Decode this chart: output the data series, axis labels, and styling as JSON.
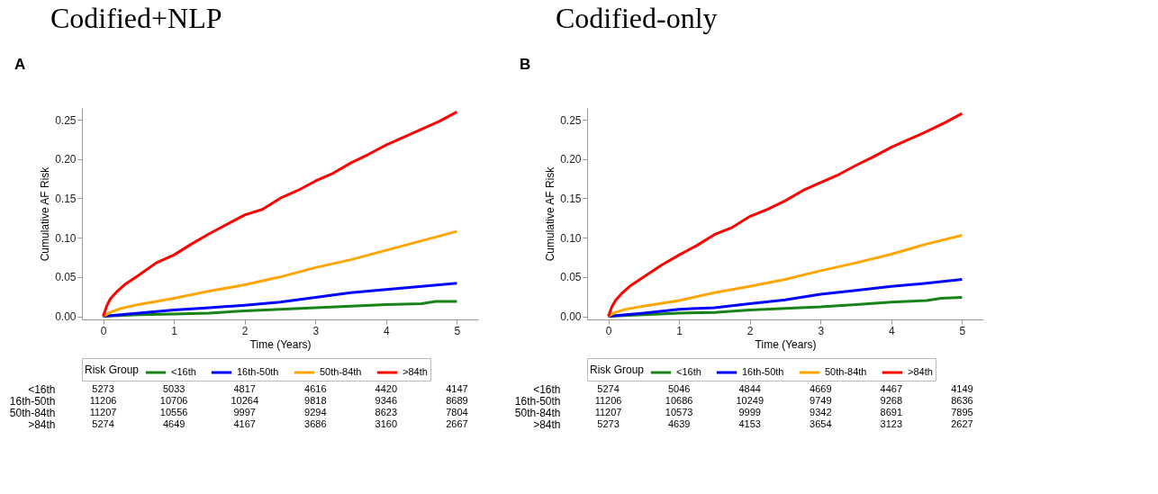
{
  "chart_data": [
    {
      "type": "line",
      "title": "Codified+NLP",
      "xlabel": "Time (Years)",
      "ylabel": "Cumulative AF Risk",
      "legend_title": "Risk Group",
      "legend": "bottom",
      "grid": false,
      "marker": "none",
      "line_style": "solid",
      "xlim": [
        -0.3,
        5.3
      ],
      "ylim": [
        -0.004,
        0.265
      ],
      "xticks": [
        0,
        1,
        2,
        3,
        4,
        5
      ],
      "yticks": [
        {
          "value": 0,
          "label": "0.00"
        },
        {
          "value": 0.05,
          "label": "0.05"
        },
        {
          "value": 0.1,
          "label": "0.10"
        },
        {
          "value": 0.15,
          "label": "0.15"
        },
        {
          "value": 0.2,
          "label": "0.20"
        },
        {
          "value": 0.25,
          "label": "0.25"
        }
      ],
      "series": [
        {
          "name": "<16th",
          "color": "#178217",
          "x": [
            0,
            0.5,
            1,
            1.5,
            2,
            2.5,
            3,
            3.5,
            4,
            4.5,
            4.7,
            5
          ],
          "values": [
            0,
            0.002,
            0.003,
            0.004,
            0.007,
            0.009,
            0.011,
            0.013,
            0.015,
            0.016,
            0.019,
            0.019
          ]
        },
        {
          "name": "16th-50th",
          "color": "#0000ff",
          "x": [
            0,
            0.5,
            1,
            1.5,
            2,
            2.5,
            3,
            3.5,
            4,
            4.5,
            5
          ],
          "values": [
            0,
            0.004,
            0.008,
            0.011,
            0.014,
            0.018,
            0.024,
            0.03,
            0.034,
            0.038,
            0.042
          ]
        },
        {
          "name": "50th-84th",
          "color": "#ffa500",
          "x": [
            0,
            0.1,
            0.25,
            0.5,
            1,
            1.5,
            2,
            2.5,
            3,
            3.5,
            4,
            4.5,
            5
          ],
          "values": [
            0,
            0.005,
            0.01,
            0.015,
            0.023,
            0.032,
            0.04,
            0.05,
            0.062,
            0.072,
            0.084,
            0.096,
            0.108
          ]
        },
        {
          "name": ">84th",
          "color": "#ff0000",
          "x": [
            0,
            0.05,
            0.1,
            0.2,
            0.3,
            0.5,
            0.75,
            1,
            1.25,
            1.5,
            1.75,
            2,
            2.25,
            2.5,
            2.75,
            3,
            3.25,
            3.5,
            3.75,
            4,
            4.25,
            4.5,
            4.75,
            5
          ],
          "values": [
            0,
            0.013,
            0.022,
            0.032,
            0.04,
            0.052,
            0.068,
            0.078,
            0.092,
            0.105,
            0.117,
            0.129,
            0.136,
            0.15,
            0.16,
            0.172,
            0.182,
            0.195,
            0.206,
            0.218,
            0.228,
            0.238,
            0.248,
            0.26
          ]
        }
      ],
      "annotations": [
        "A",
        "<16th",
        "5273",
        "5033",
        "4817",
        "4616",
        "4420",
        "4147",
        "16th-50th",
        "11206",
        "10706",
        "10264",
        "9818",
        "9346",
        "8689",
        "50th-84th",
        "11207",
        "10556",
        "9997",
        "9294",
        "8623",
        "7804",
        ">84th",
        "5274",
        "4649",
        "4167",
        "3686",
        "3160",
        "2667"
      ]
    },
    {
      "type": "line",
      "title": "Codified-only",
      "xlabel": "Time (Years)",
      "ylabel": "Cumulative AF Risk",
      "legend_title": "Risk Group",
      "legend": "bottom",
      "grid": false,
      "marker": "none",
      "line_style": "solid",
      "xlim": [
        -0.3,
        5.3
      ],
      "ylim": [
        -0.004,
        0.265
      ],
      "xticks": [
        0,
        1,
        2,
        3,
        4,
        5
      ],
      "yticks": [
        {
          "value": 0,
          "label": "0.00"
        },
        {
          "value": 0.05,
          "label": "0.05"
        },
        {
          "value": 0.1,
          "label": "0.10"
        },
        {
          "value": 0.15,
          "label": "0.15"
        },
        {
          "value": 0.2,
          "label": "0.20"
        },
        {
          "value": 0.25,
          "label": "0.25"
        }
      ],
      "series": [
        {
          "name": "<16th",
          "color": "#178217",
          "x": [
            0,
            0.5,
            1,
            1.5,
            2,
            2.5,
            3,
            3.5,
            4,
            4.5,
            4.7,
            5
          ],
          "values": [
            0,
            0.002,
            0.004,
            0.005,
            0.008,
            0.01,
            0.012,
            0.015,
            0.018,
            0.02,
            0.023,
            0.024
          ]
        },
        {
          "name": "16th-50th",
          "color": "#0000ff",
          "x": [
            0,
            0.5,
            1,
            1.5,
            2,
            2.5,
            3,
            3.5,
            4,
            4.5,
            5
          ],
          "values": [
            0,
            0.004,
            0.009,
            0.011,
            0.016,
            0.021,
            0.028,
            0.033,
            0.038,
            0.042,
            0.047
          ]
        },
        {
          "name": "50th-84th",
          "color": "#ffa500",
          "x": [
            0,
            0.1,
            0.25,
            0.5,
            1,
            1.5,
            2,
            2.5,
            3,
            3.5,
            4,
            4.5,
            5
          ],
          "values": [
            0,
            0.005,
            0.009,
            0.013,
            0.02,
            0.03,
            0.038,
            0.047,
            0.058,
            0.068,
            0.079,
            0.092,
            0.103
          ]
        },
        {
          "name": ">84th",
          "color": "#ff0000",
          "x": [
            0,
            0.05,
            0.1,
            0.2,
            0.3,
            0.5,
            0.75,
            1,
            1.25,
            1.5,
            1.75,
            2,
            2.25,
            2.5,
            2.75,
            3,
            3.25,
            3.5,
            3.75,
            4,
            4.25,
            4.5,
            4.75,
            5
          ],
          "values": [
            0,
            0.012,
            0.02,
            0.03,
            0.038,
            0.05,
            0.065,
            0.078,
            0.09,
            0.104,
            0.113,
            0.127,
            0.136,
            0.147,
            0.16,
            0.17,
            0.18,
            0.192,
            0.203,
            0.215,
            0.225,
            0.235,
            0.246,
            0.258
          ]
        }
      ],
      "annotations": [
        "B",
        "<16th",
        "5274",
        "5046",
        "4844",
        "4669",
        "4467",
        "4149",
        "16th-50th",
        "11206",
        "10686",
        "10249",
        "9749",
        "9268",
        "8636",
        "50th-84th",
        "11207",
        "10573",
        "9999",
        "9342",
        "8691",
        "7895",
        ">84th",
        "5273",
        "4639",
        "4153",
        "3654",
        "3123",
        "2627"
      ]
    }
  ]
}
